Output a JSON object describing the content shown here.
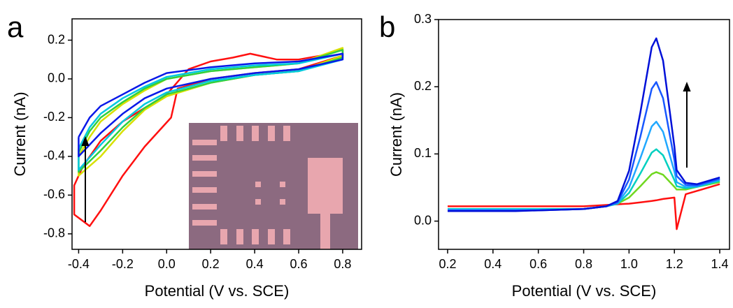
{
  "chart_data": [
    {
      "type": "line",
      "panel_label": "a",
      "x_label": "Potential (V vs. SCE)",
      "y_label": "Current (nA)",
      "xlim": [
        -0.43,
        0.886
      ],
      "ylim": [
        -0.88,
        0.31
      ],
      "xticks": [
        -0.4,
        -0.2,
        {
          "value": 0,
          "label": "0.0"
        },
        0.2,
        0.4,
        0.6,
        0.8
      ],
      "yticks": [
        0.2,
        {
          "value": 0,
          "label": "0.0"
        },
        -0.2,
        -0.4,
        -0.6,
        -0.8
      ],
      "series": [
        {
          "color": "#ff1010",
          "x": [
            -0.38,
            -0.3,
            -0.2,
            -0.1,
            0.0,
            0.1,
            0.2,
            0.3,
            0.38,
            0.5,
            0.6,
            0.7,
            0.8,
            0.8,
            0.6,
            0.4,
            0.2,
            0.05,
            0.02,
            -0.1,
            -0.2,
            -0.3,
            -0.35,
            -0.42,
            -0.42,
            -0.38
          ],
          "values": [
            -0.45,
            -0.32,
            -0.22,
            -0.15,
            -0.08,
            0.05,
            0.09,
            0.11,
            0.13,
            0.1,
            0.1,
            0.12,
            0.15,
            0.12,
            0.05,
            0.03,
            0.0,
            -0.05,
            -0.2,
            -0.35,
            -0.5,
            -0.68,
            -0.76,
            -0.7,
            -0.55,
            -0.45
          ]
        },
        {
          "color": "#d8e000",
          "x": [
            -0.4,
            -0.35,
            -0.3,
            -0.2,
            -0.1,
            0.0,
            0.2,
            0.4,
            0.6,
            0.8,
            0.8,
            0.6,
            0.4,
            0.2,
            0.0,
            -0.1,
            -0.2,
            -0.3,
            -0.4,
            -0.4
          ],
          "values": [
            -0.4,
            -0.3,
            -0.22,
            -0.13,
            -0.06,
            0.0,
            0.04,
            0.06,
            0.08,
            0.16,
            0.12,
            0.04,
            0.02,
            -0.02,
            -0.09,
            -0.16,
            -0.27,
            -0.4,
            -0.5,
            -0.4
          ]
        },
        {
          "color": "#30d040",
          "x": [
            -0.4,
            -0.35,
            -0.3,
            -0.2,
            -0.1,
            0.0,
            0.2,
            0.4,
            0.6,
            0.8,
            0.8,
            0.6,
            0.4,
            0.2,
            0.0,
            -0.1,
            -0.2,
            -0.3,
            -0.4,
            -0.4
          ],
          "values": [
            -0.38,
            -0.27,
            -0.2,
            -0.12,
            -0.05,
            0.0,
            0.04,
            0.06,
            0.08,
            0.15,
            0.11,
            0.04,
            0.02,
            -0.02,
            -0.08,
            -0.15,
            -0.25,
            -0.37,
            -0.48,
            -0.38
          ]
        },
        {
          "color": "#00c8e0",
          "x": [
            -0.4,
            -0.35,
            -0.3,
            -0.2,
            -0.1,
            0.0,
            0.2,
            0.4,
            0.6,
            0.8,
            0.8,
            0.6,
            0.4,
            0.2,
            0.0,
            -0.1,
            -0.2,
            -0.3,
            -0.4,
            -0.4
          ],
          "values": [
            -0.36,
            -0.25,
            -0.18,
            -0.1,
            -0.04,
            0.01,
            0.05,
            0.07,
            0.08,
            0.13,
            0.1,
            0.04,
            0.02,
            -0.01,
            -0.07,
            -0.13,
            -0.22,
            -0.34,
            -0.47,
            -0.36
          ]
        },
        {
          "color": "#0818e8",
          "x": [
            -0.4,
            -0.35,
            -0.3,
            -0.2,
            -0.1,
            0.0,
            0.2,
            0.4,
            0.6,
            0.8,
            0.8,
            0.6,
            0.4,
            0.2,
            0.0,
            -0.1,
            -0.2,
            -0.3,
            -0.4,
            -0.4
          ],
          "values": [
            -0.3,
            -0.2,
            -0.14,
            -0.08,
            -0.02,
            0.03,
            0.06,
            0.08,
            0.09,
            0.13,
            0.1,
            0.05,
            0.03,
            0.0,
            -0.05,
            -0.1,
            -0.18,
            -0.28,
            -0.4,
            -0.3
          ]
        }
      ]
    },
    {
      "type": "line",
      "panel_label": "b",
      "x_label": "Potential (V vs. SCE)",
      "y_label": "Current (nA)",
      "xlim": [
        0.16,
        1.443
      ],
      "ylim": [
        -0.042,
        0.3
      ],
      "xticks": [
        0.2,
        0.4,
        0.6,
        0.8,
        {
          "value": 1,
          "label": "1.0"
        },
        1.2,
        1.4
      ],
      "yticks": [
        {
          "value": 0,
          "label": "0.0"
        },
        0.1,
        0.2,
        0.3
      ],
      "x": [
        0.2,
        0.3,
        0.4,
        0.5,
        0.6,
        0.7,
        0.8,
        0.9,
        0.95,
        1.0,
        1.05,
        1.1,
        1.12,
        1.15,
        1.2,
        1.21,
        1.25,
        1.3,
        1.4
      ],
      "series": [
        {
          "color": "#ff1010",
          "values": [
            0.022,
            0.022,
            0.022,
            0.022,
            0.022,
            0.022,
            0.022,
            0.024,
            0.025,
            0.026,
            0.028,
            0.03,
            0.031,
            0.033,
            0.035,
            -0.012,
            0.04,
            0.045,
            0.055
          ]
        },
        {
          "color": "#70d820",
          "values": [
            0.018,
            0.018,
            0.018,
            0.018,
            0.018,
            0.018,
            0.018,
            0.022,
            0.026,
            0.035,
            0.052,
            0.07,
            0.073,
            0.069,
            0.051,
            0.047,
            0.047,
            0.051,
            0.058
          ]
        },
        {
          "color": "#00d0c0",
          "values": [
            0.018,
            0.018,
            0.018,
            0.018,
            0.018,
            0.018,
            0.018,
            0.022,
            0.026,
            0.042,
            0.071,
            0.102,
            0.107,
            0.098,
            0.061,
            0.052,
            0.049,
            0.051,
            0.06
          ]
        },
        {
          "color": "#20a8ff",
          "values": [
            0.017,
            0.017,
            0.017,
            0.017,
            0.017,
            0.017,
            0.018,
            0.022,
            0.027,
            0.05,
            0.094,
            0.141,
            0.148,
            0.133,
            0.074,
            0.058,
            0.051,
            0.052,
            0.062
          ]
        },
        {
          "color": "#1858ff",
          "values": [
            0.016,
            0.016,
            0.016,
            0.016,
            0.016,
            0.017,
            0.018,
            0.022,
            0.028,
            0.062,
            0.126,
            0.197,
            0.207,
            0.183,
            0.091,
            0.067,
            0.054,
            0.053,
            0.063
          ]
        },
        {
          "color": "#0010d8",
          "values": [
            0.015,
            0.015,
            0.015,
            0.015,
            0.016,
            0.017,
            0.018,
            0.022,
            0.03,
            0.075,
            0.162,
            0.259,
            0.272,
            0.239,
            0.111,
            0.076,
            0.057,
            0.055,
            0.065
          ]
        }
      ]
    }
  ]
}
